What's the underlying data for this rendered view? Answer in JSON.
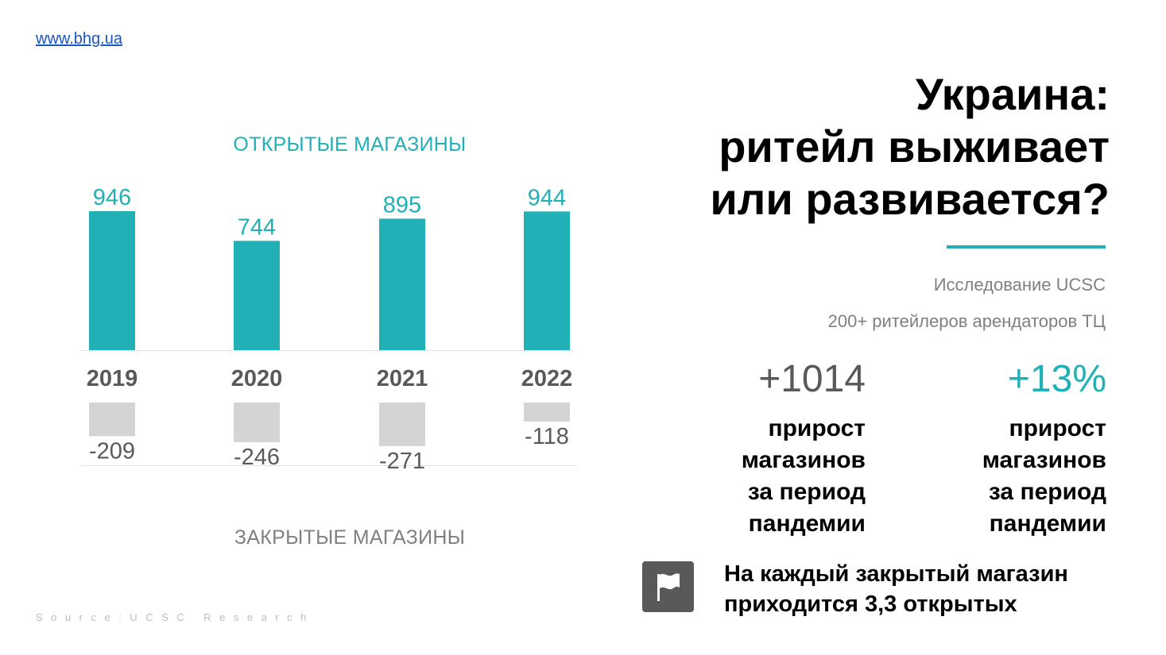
{
  "header": {
    "site_link": "www.bhg.ua"
  },
  "chart_data": {
    "type": "bar",
    "categories": [
      "2019",
      "2020",
      "2021",
      "2022"
    ],
    "title": "ОТКРЫТЫЕ МАГАЗИНЫ",
    "bottom_title": "ЗАКРЫТЫЕ МАГАЗИНЫ",
    "series": [
      {
        "name": "ОТКРЫТЫЕ МАГАЗИНЫ",
        "values": [
          946,
          744,
          895,
          944
        ],
        "color": "#20b0b6"
      },
      {
        "name": "ЗАКРЫТЫЕ МАГАЗИНЫ",
        "values": [
          -209,
          -246,
          -271,
          -118
        ],
        "color": "#d4d4d4"
      }
    ],
    "value_labels_open": [
      "946",
      "744",
      "895",
      "944"
    ],
    "value_labels_closed": [
      "-209",
      "-246",
      "-271",
      "-118"
    ],
    "xlabel": "",
    "ylabel": "",
    "grid": false,
    "legend": "none"
  },
  "source": "Source:UCSC Research",
  "headline": {
    "line1": "Украина:",
    "line2": "ритейл выживает",
    "line3": "или развивается?"
  },
  "study": {
    "line1": "Исследование UCSC",
    "line2": "200+ ритейлеров арендаторов ТЦ"
  },
  "stats": [
    {
      "value": "+1014",
      "desc": [
        "прирост",
        "магазинов",
        "за период",
        "пандемии"
      ]
    },
    {
      "value": "+13%",
      "desc": [
        "прирост",
        "магазинов",
        "за период",
        "пандемии"
      ]
    }
  ],
  "note": {
    "icon": "flag-icon",
    "line1": "На каждый закрытый магазин",
    "line2": "приходится 3,3 открытых"
  },
  "colors": {
    "accent": "#20b0b6",
    "closed_bar": "#d4d4d4",
    "dark_text": "#595959",
    "grey_text": "#808080"
  }
}
